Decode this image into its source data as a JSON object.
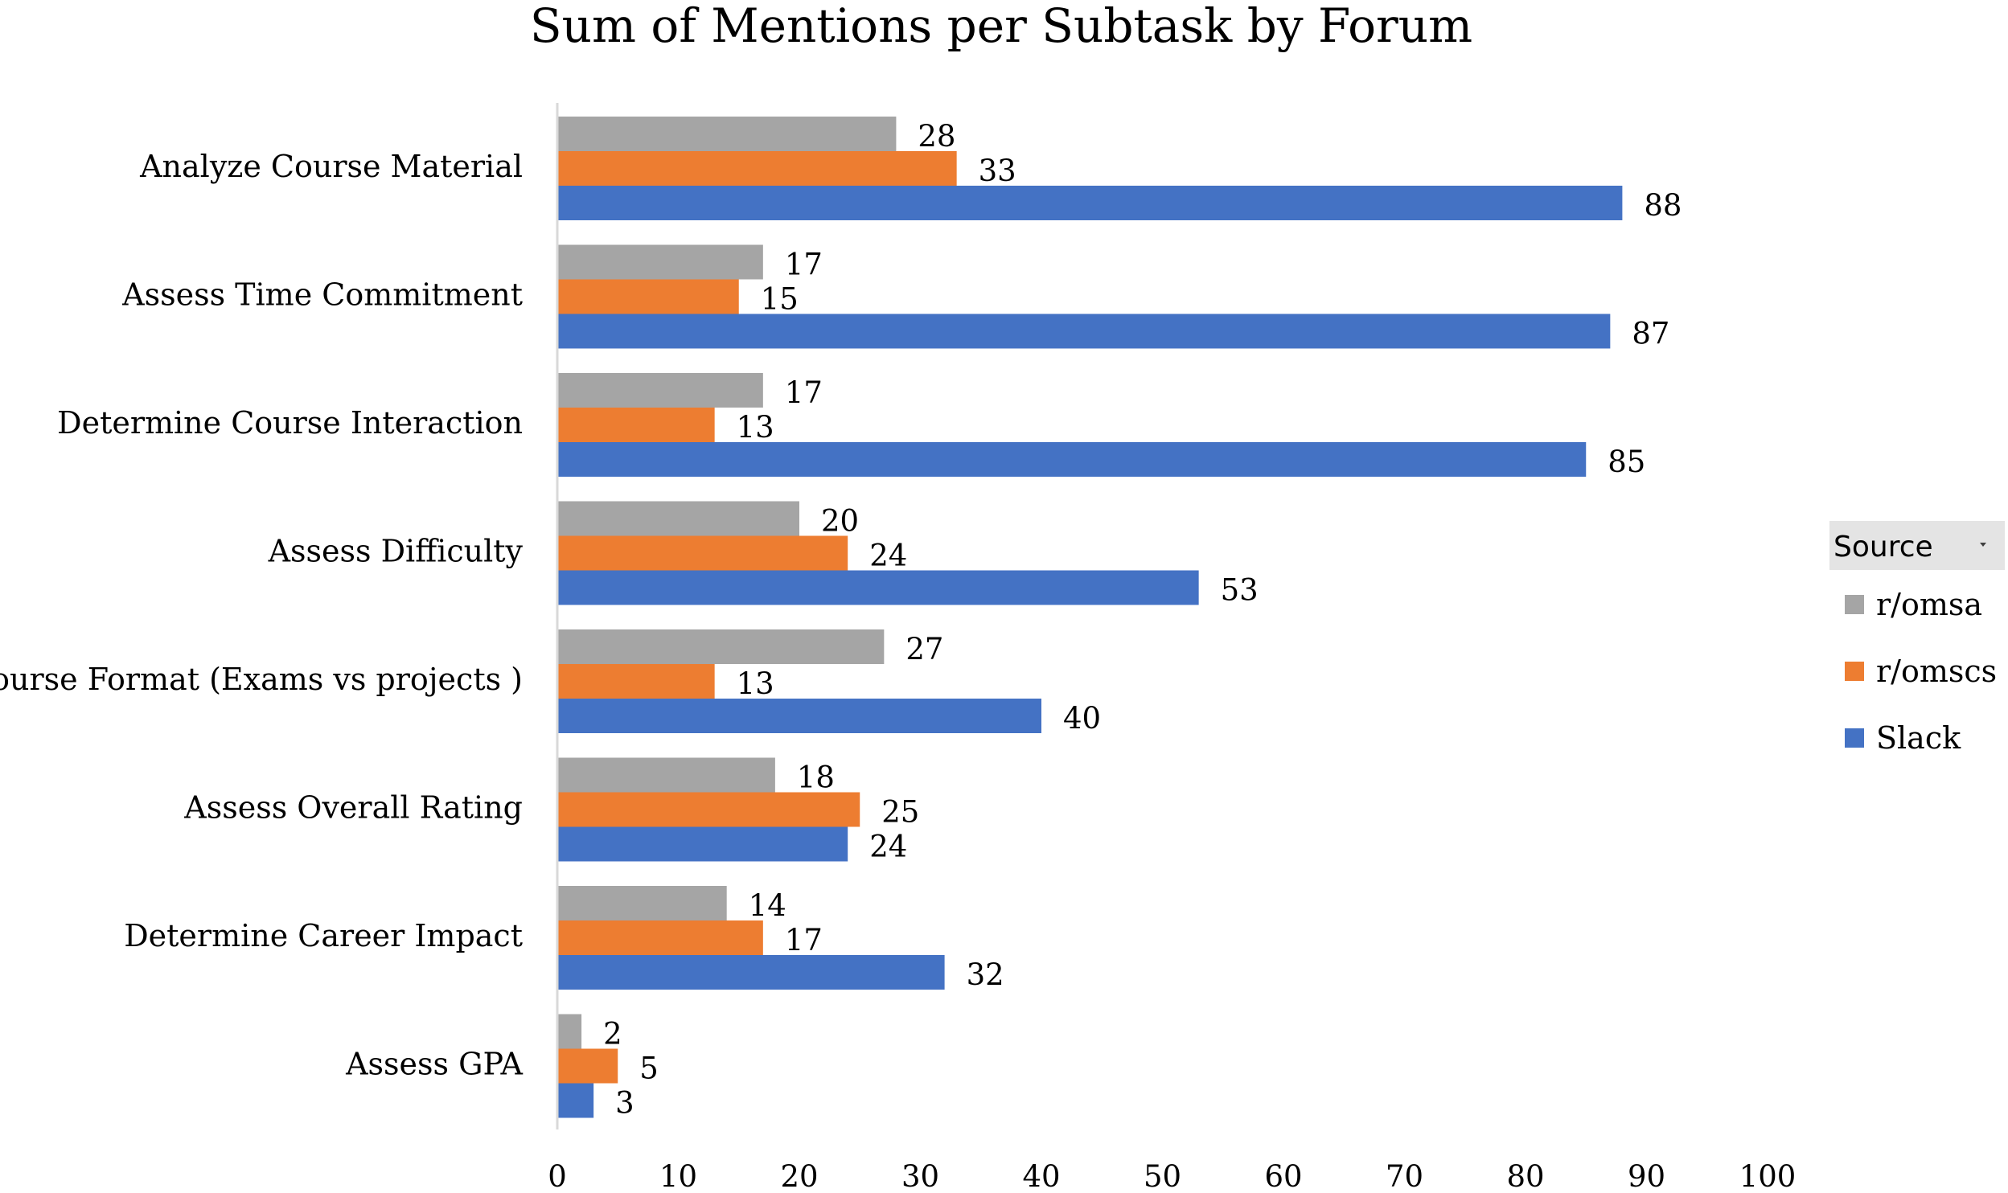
{
  "chart_data": {
    "type": "bar",
    "orientation": "horizontal",
    "title": "Sum of Mentions per Subtask by Forum",
    "xlabel": "",
    "ylabel": "",
    "categories": [
      "Analyze Course Material",
      "Assess Time Commitment",
      "Determine Course Interaction",
      "Assess Difficulty",
      "Course Format (Exams vs projects )",
      "Assess Overall Rating",
      "Determine Career Impact",
      "Assess GPA"
    ],
    "series": [
      {
        "name": "r/omsa",
        "color": "#a5a5a5",
        "values": [
          28,
          17,
          17,
          20,
          27,
          18,
          14,
          2
        ]
      },
      {
        "name": "r/omscs",
        "color": "#ed7d31",
        "values": [
          33,
          15,
          13,
          24,
          13,
          25,
          17,
          5
        ]
      },
      {
        "name": "Slack",
        "color": "#4472c4",
        "values": [
          88,
          87,
          85,
          53,
          40,
          24,
          32,
          3
        ]
      }
    ],
    "xlim": [
      0,
      100
    ],
    "xticks": [
      "0",
      "10",
      "20",
      "30",
      "40",
      "50",
      "60",
      "70",
      "80",
      "90",
      "100"
    ],
    "grid": false,
    "legend": {
      "title": "Source",
      "dropdown_icon": "chevron-down-icon",
      "placement": "right"
    }
  }
}
